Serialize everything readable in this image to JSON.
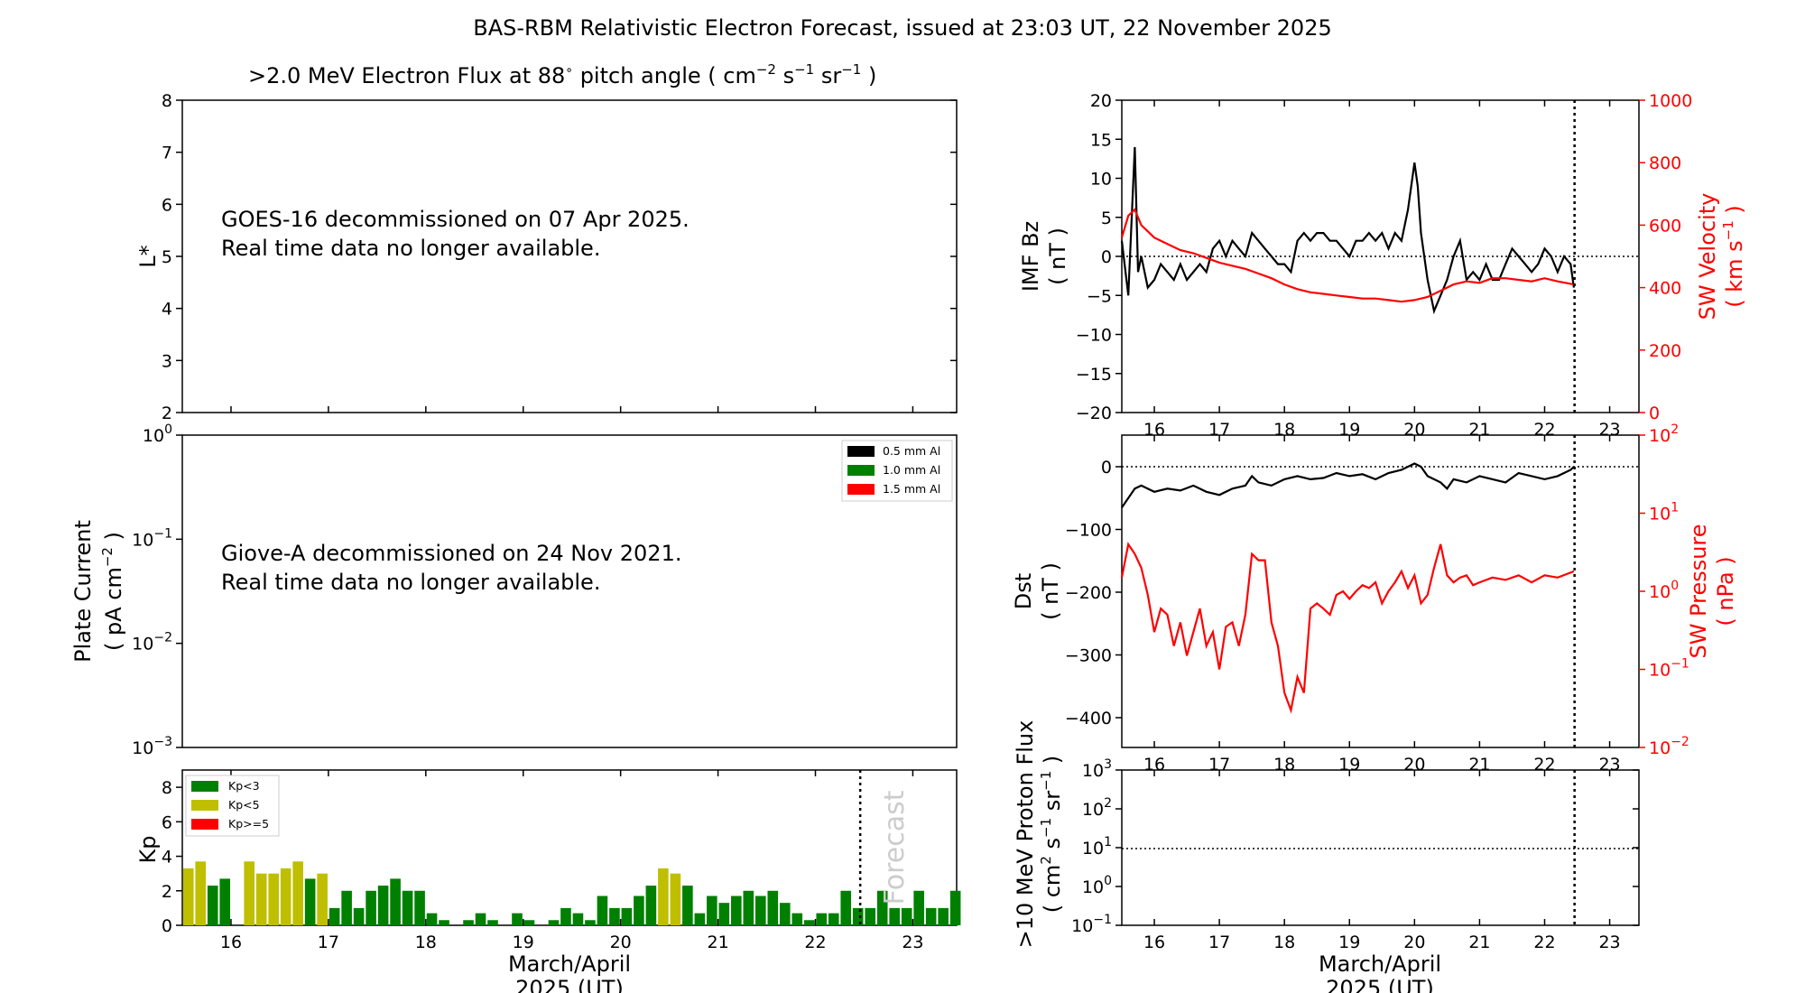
{
  "title": "BAS-RBM Relativistic Electron Forecast, issued at 23:03 UT, 22 November 2025",
  "panels": {
    "flux": {
      "title_main": ">2.0 MeV Electron Flux at 88",
      "title_unit": "( cm",
      "ylabel": "L*",
      "yticks": [
        "2",
        "3",
        "4",
        "5",
        "6",
        "7",
        "8"
      ],
      "ylim": [
        2,
        8
      ],
      "notice_line1": "GOES-16 decommissioned on 07 Apr 2025.",
      "notice_line2": "Real time data no longer available."
    },
    "plate": {
      "ylabel_line1": "Plate Current",
      "ylabel_line2": "( pA cm",
      "yticks": [
        "10",
        "10",
        "10",
        "10"
      ],
      "ytick_exps": [
        "0",
        "−1",
        "−2",
        "−3"
      ],
      "notice_line1": "Giove-A decommissioned on 24 Nov 2021.",
      "notice_line2": "Real time data no longer available.",
      "legend": [
        {
          "label": "0.5 mm Al",
          "color": "#000000"
        },
        {
          "label": "1.0 mm Al",
          "color": "#008000"
        },
        {
          "label": "1.5 mm Al",
          "color": "#ff0000"
        }
      ]
    },
    "kp": {
      "ylabel": "Kp",
      "yticks": [
        "0",
        "2",
        "4",
        "6",
        "8"
      ],
      "forecast_label": "Forecast",
      "legend": [
        {
          "label": "Kp<3",
          "color": "#008000"
        },
        {
          "label": "Kp<5",
          "color": "#bfbf00"
        },
        {
          "label": "Kp>=5",
          "color": "#ff0000"
        }
      ]
    },
    "imf": {
      "ylabel_line1": "IMF Bz",
      "ylabel_line2": "( nT )",
      "yticks": [
        "20",
        "15",
        "10",
        "5",
        "0",
        "−5",
        "−10",
        "−15",
        "−20"
      ],
      "y2label_line1": "SW Velocity",
      "y2label_line2": "( km s",
      "y2ticks": [
        "1000",
        "800",
        "600",
        "400",
        "200",
        "0"
      ]
    },
    "dst": {
      "ylabel_line1": "Dst",
      "ylabel_line2": "( nT )",
      "yticks": [
        "0",
        "−100",
        "−200",
        "−300",
        "−400"
      ],
      "y2label_line1": "SW Pressure",
      "y2label_line2": "( nPa )",
      "y2ticks": [
        "10",
        "10",
        "10",
        "10",
        "10"
      ],
      "y2tick_exps": [
        "2",
        "1",
        "0",
        "−1",
        "−2"
      ]
    },
    "proton": {
      "ylabel_line1": ">10 MeV Proton Flux",
      "ylabel_line2": "( cm",
      "yticks": [
        "10",
        "10",
        "10",
        "10",
        "10"
      ],
      "ytick_exps": [
        "3",
        "2",
        "1",
        "0",
        "−1"
      ]
    }
  },
  "xaxis": {
    "ticks": [
      "16",
      "17",
      "18",
      "19",
      "20",
      "21",
      "22",
      "23"
    ],
    "label_line1": "March/April",
    "label_line2": "2025 (UT)",
    "xlim": [
      15.5,
      23.45
    ],
    "now": 22.46
  },
  "chart_data": [
    {
      "type": "bar",
      "title": "",
      "ylabel": "Kp",
      "ylim": [
        0,
        9
      ],
      "x_start": 15.5625,
      "x_step": 0.125,
      "values": [
        3.3,
        3.7,
        2.3,
        2.7,
        0,
        3.7,
        3.0,
        3.0,
        3.3,
        3.7,
        2.7,
        3.0,
        1.0,
        2.0,
        1.0,
        2.0,
        2.3,
        2.7,
        2.0,
        2.0,
        0.7,
        0.3,
        0,
        0.3,
        0.7,
        0.3,
        0,
        0.7,
        0.3,
        0,
        0.3,
        1.0,
        0.7,
        0.3,
        1.7,
        1.0,
        1.0,
        1.7,
        2.3,
        3.3,
        3.0,
        2.3,
        0.7,
        1.7,
        1.3,
        1.7,
        2.0,
        1.7,
        2.0,
        1.3,
        0.7,
        0.3,
        0.7,
        0.7,
        2.0,
        1.0,
        1.0,
        2.0,
        1.0,
        1.0,
        2.0,
        1.0,
        1.0,
        2.0
      ],
      "colors": {
        "low": "#008000",
        "mid": "#bfbf00",
        "high": "#ff0000"
      }
    },
    {
      "type": "line",
      "title": "",
      "ylabel": "IMF Bz ( nT )",
      "ylim": [
        -20,
        20
      ],
      "y2label": "SW Velocity ( km s-1 )",
      "y2lim": [
        0,
        1000
      ],
      "series": [
        {
          "color": "#000000",
          "axis": "left",
          "x": [
            15.5,
            15.6,
            15.7,
            15.75,
            15.8,
            15.9,
            16.0,
            16.1,
            16.2,
            16.3,
            16.4,
            16.5,
            16.6,
            16.7,
            16.8,
            16.9,
            17.0,
            17.1,
            17.2,
            17.3,
            17.4,
            17.5,
            17.6,
            17.7,
            17.8,
            17.9,
            18.0,
            18.1,
            18.2,
            18.3,
            18.4,
            18.5,
            18.6,
            18.7,
            18.8,
            18.9,
            19.0,
            19.1,
            19.2,
            19.3,
            19.4,
            19.5,
            19.6,
            19.7,
            19.8,
            19.9,
            20.0,
            20.05,
            20.1,
            20.2,
            20.3,
            20.4,
            20.5,
            20.6,
            20.7,
            20.8,
            20.9,
            21.0,
            21.1,
            21.2,
            21.3,
            21.4,
            21.5,
            21.6,
            21.7,
            21.8,
            21.9,
            22.0,
            22.1,
            22.2,
            22.3,
            22.4,
            22.45
          ],
          "y": [
            2,
            -5,
            14,
            -2,
            0,
            -4,
            -3,
            -1,
            -2,
            -3,
            -1,
            -3,
            -2,
            -1,
            -2,
            1,
            2,
            0,
            2,
            1,
            0,
            3,
            2,
            1,
            0,
            -1,
            -1,
            -2,
            2,
            3,
            2,
            3,
            3,
            2,
            2,
            1,
            0,
            2,
            2,
            3,
            2,
            3,
            1,
            3,
            2,
            6,
            12,
            9,
            3,
            -3,
            -7,
            -5,
            -3,
            0,
            2,
            -3,
            -2,
            -3,
            -1,
            -3,
            -3,
            -1,
            1,
            0,
            -1,
            -2,
            -1,
            1,
            0,
            -2,
            0,
            -1,
            -4
          ]
        },
        {
          "color": "#ff0000",
          "axis": "right",
          "x": [
            15.5,
            15.6,
            15.7,
            15.8,
            15.9,
            16.0,
            16.2,
            16.4,
            16.6,
            16.8,
            17.0,
            17.2,
            17.4,
            17.6,
            17.8,
            18.0,
            18.2,
            18.4,
            18.6,
            18.8,
            19.0,
            19.2,
            19.4,
            19.6,
            19.8,
            20.0,
            20.2,
            20.4,
            20.6,
            20.8,
            21.0,
            21.2,
            21.4,
            21.6,
            21.8,
            22.0,
            22.2,
            22.45
          ],
          "y": [
            560,
            630,
            650,
            600,
            580,
            560,
            540,
            520,
            510,
            495,
            480,
            470,
            460,
            445,
            430,
            410,
            395,
            385,
            380,
            375,
            370,
            365,
            365,
            360,
            355,
            360,
            370,
            390,
            410,
            420,
            415,
            430,
            430,
            425,
            420,
            430,
            420,
            410
          ]
        }
      ]
    },
    {
      "type": "line",
      "title": "",
      "ylabel": "Dst ( nT )",
      "ylim": [
        -450,
        50
      ],
      "y2label": "SW Pressure ( nPa )",
      "y2scale": "log",
      "y2lim": [
        0.01,
        100
      ],
      "series": [
        {
          "color": "#000000",
          "axis": "left",
          "x": [
            15.5,
            15.6,
            15.7,
            15.8,
            16.0,
            16.2,
            16.4,
            16.6,
            16.8,
            17.0,
            17.2,
            17.4,
            17.5,
            17.6,
            17.8,
            18.0,
            18.2,
            18.4,
            18.6,
            18.8,
            19.0,
            19.2,
            19.4,
            19.6,
            19.8,
            20.0,
            20.1,
            20.2,
            20.4,
            20.5,
            20.6,
            20.8,
            21.0,
            21.2,
            21.4,
            21.6,
            21.8,
            22.0,
            22.2,
            22.4,
            22.45
          ],
          "y": [
            -65,
            -50,
            -35,
            -30,
            -40,
            -35,
            -38,
            -30,
            -40,
            -45,
            -35,
            -30,
            -15,
            -25,
            -30,
            -20,
            -15,
            -20,
            -18,
            -10,
            -15,
            -12,
            -20,
            -10,
            -5,
            5,
            0,
            -15,
            -25,
            -35,
            -20,
            -25,
            -15,
            -20,
            -25,
            -10,
            -15,
            -20,
            -15,
            -5,
            0
          ]
        },
        {
          "color": "#ff0000",
          "axis": "right",
          "x": [
            15.5,
            15.6,
            15.7,
            15.8,
            15.9,
            16.0,
            16.1,
            16.2,
            16.3,
            16.4,
            16.5,
            16.6,
            16.7,
            16.8,
            16.9,
            17.0,
            17.1,
            17.2,
            17.3,
            17.4,
            17.5,
            17.6,
            17.7,
            17.8,
            17.9,
            18.0,
            18.1,
            18.2,
            18.3,
            18.4,
            18.5,
            18.6,
            18.7,
            18.8,
            18.9,
            19.0,
            19.1,
            19.2,
            19.3,
            19.4,
            19.5,
            19.6,
            19.7,
            19.8,
            19.9,
            20.0,
            20.1,
            20.2,
            20.3,
            20.4,
            20.5,
            20.6,
            20.7,
            20.8,
            20.9,
            21.0,
            21.2,
            21.4,
            21.6,
            21.8,
            22.0,
            22.2,
            22.45
          ],
          "y": [
            1.5,
            4,
            3,
            2,
            0.9,
            0.3,
            0.6,
            0.5,
            0.2,
            0.4,
            0.15,
            0.3,
            0.6,
            0.2,
            0.3,
            0.1,
            0.35,
            0.4,
            0.2,
            0.5,
            3,
            2.5,
            2.5,
            0.4,
            0.2,
            0.05,
            0.03,
            0.08,
            0.05,
            0.6,
            0.7,
            0.6,
            0.5,
            0.9,
            1,
            0.8,
            1.0,
            1.2,
            1.1,
            1.3,
            0.7,
            1.0,
            1.3,
            1.8,
            1.1,
            1.6,
            0.7,
            0.9,
            2,
            4,
            1.6,
            1.3,
            1.5,
            1.6,
            1.2,
            1.3,
            1.5,
            1.4,
            1.6,
            1.3,
            1.6,
            1.5,
            1.8
          ]
        }
      ]
    },
    {
      "type": "line",
      "title": "",
      "ylabel": ">10 MeV Proton Flux ( cm-2 s-1 sr-1 )",
      "yscale": "log",
      "ylim": [
        0.1,
        1000
      ],
      "series": []
    }
  ]
}
